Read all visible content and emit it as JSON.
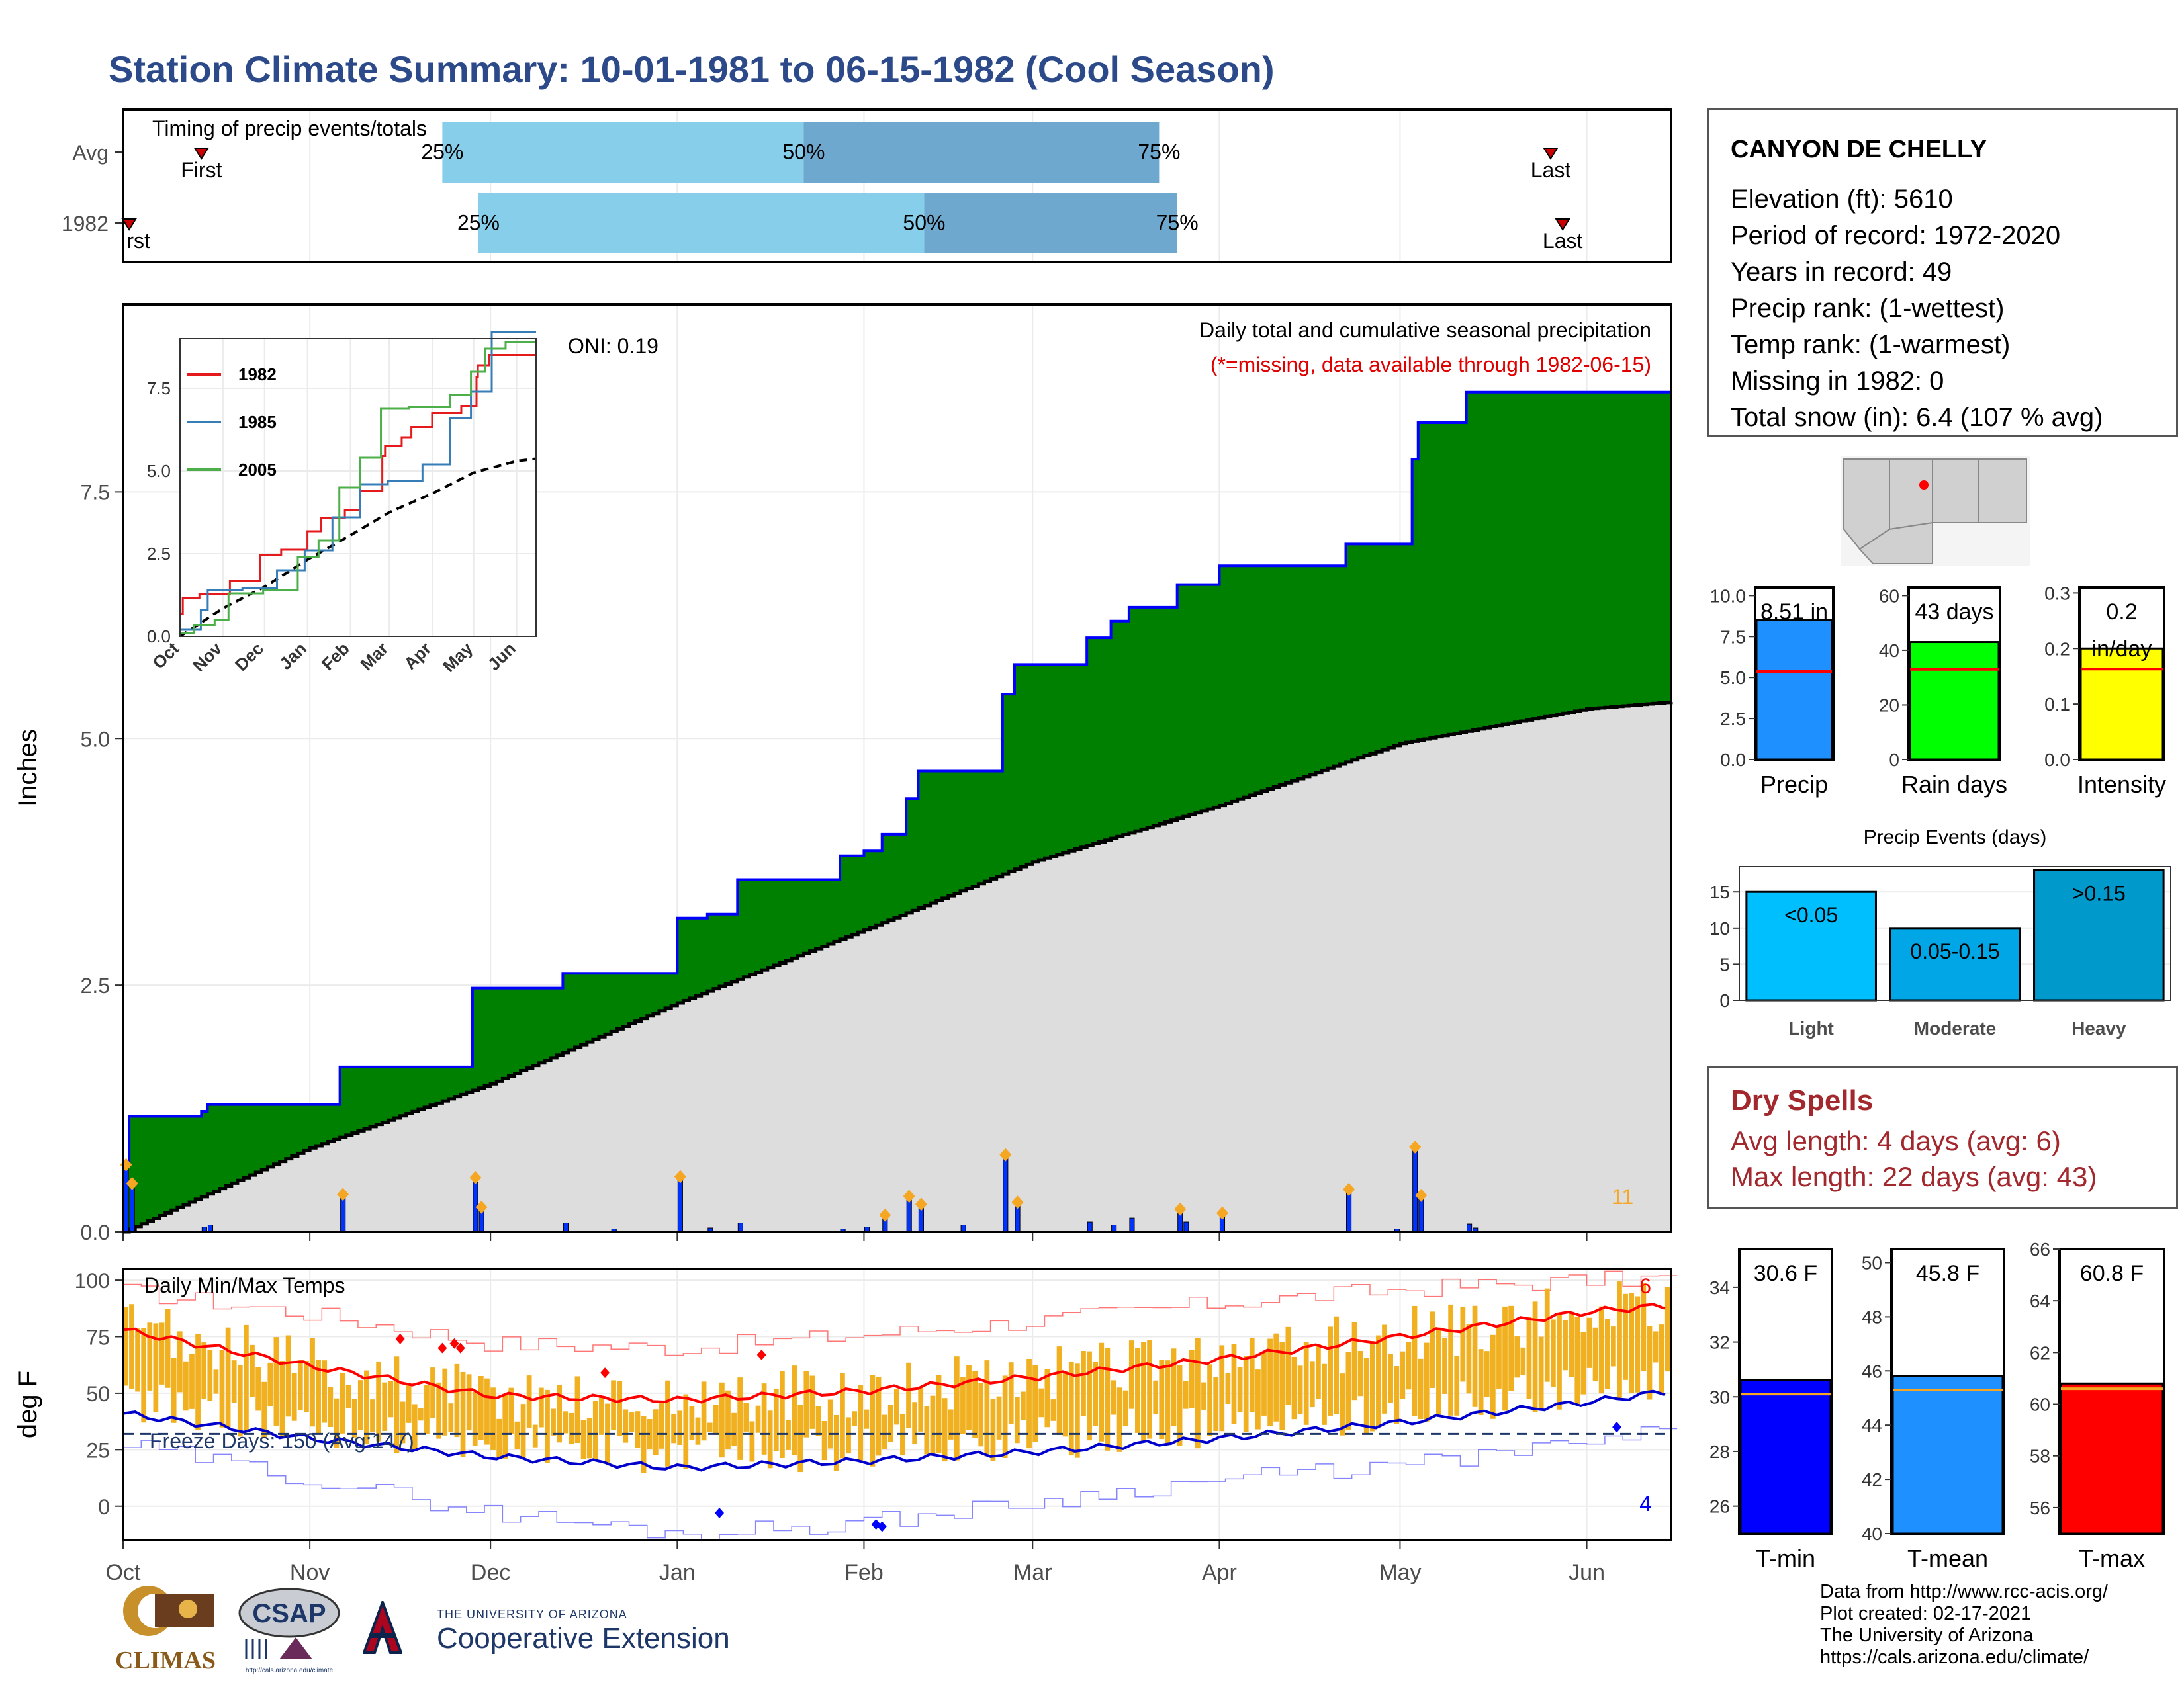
{
  "title": "Station Climate Summary: 10-01-1981 to 06-15-1982 (Cool Season)",
  "station": {
    "name": "CANYON DE CHELLY",
    "lines": [
      "Elevation (ft): 5610",
      "Period of record: 1972-2020",
      "Years in record: 49",
      "Precip rank:  (1-wettest)",
      "Temp rank:  (1-warmest)",
      "Missing in 1982: 0",
      "Total snow (in): 6.4 (107 % avg)"
    ]
  },
  "dry_spells": {
    "title": "Dry Spells",
    "avg": "Avg length: 4 days (avg: 6)",
    "max": "Max length: 22 days (avg: 43)"
  },
  "credits": [
    "Data from http://www.rcc-acis.org/",
    "Plot created: 02-17-2021",
    "The University of Arizona",
    "https://cals.arizona.edu/climate/"
  ],
  "logos": {
    "climas": "CLIMAS",
    "csap": "CSAP",
    "csap_url": "http://cals.arizona.edu/climate",
    "ua_small": "THE UNIVERSITY OF ARIZONA",
    "ua_big": "Cooperative Extension"
  },
  "colors": {
    "title": "#2c4a8a",
    "cumulative_fill": "#008000",
    "cumulative_line": "#0000ff",
    "avg_fill": "#dddddd",
    "daily_bar": "#0033ff",
    "timing_light": "#87ceeb",
    "timing_dark": "#6fa8cf",
    "precip_bar": "#1e90ff",
    "raindays_bar": "#00ff00",
    "intensity_bar": "#ffff00",
    "events_light": "#00bfff",
    "events_moderate": "#00a6e6",
    "events_heavy": "#0099cc",
    "temp_bar": "#f0b020",
    "tmax_line": "#ff0000",
    "tmin_line": "#0000cc",
    "dry_text": "#a3282e"
  },
  "chart_data": [
    {
      "id": "timing",
      "type": "bar",
      "title": "Timing of precip events/totals",
      "rows": [
        "Avg",
        "1982"
      ],
      "x_range_days": [
        0,
        257
      ],
      "avg": {
        "first": 13,
        "p25": 53,
        "p50": 113,
        "p75": 172,
        "last": 237
      },
      "y1982": {
        "first": 1,
        "p25": 59,
        "p50": 133,
        "p75": 175,
        "last": 239
      },
      "labels": {
        "first": "First",
        "last": "Last",
        "p25": "25%",
        "p50": "50%",
        "p75": "75%",
        "first_clipped": "rst"
      }
    },
    {
      "id": "precip",
      "type": "area",
      "title": "Daily total and cumulative seasonal precipitation",
      "subtitle": "(*=missing, data available through 1982-06-15)",
      "oni": "ONI: 0.19",
      "ylabel": "Inches",
      "ylim": [
        0,
        9.4
      ],
      "yticks": [
        0.0,
        2.5,
        5.0,
        7.5
      ],
      "ytick_labels": [
        "0.0",
        "2.5",
        "5.0",
        "7.5"
      ],
      "x_months": [
        "Oct",
        "Nov",
        "Dec",
        "Jan",
        "Feb",
        "Mar",
        "Apr",
        "May",
        "Jun"
      ],
      "x_month_days": [
        0,
        31,
        61,
        92,
        123,
        151,
        182,
        212,
        243
      ],
      "x_range_days": [
        0,
        257
      ],
      "cumulative_steps": [
        [
          0,
          0.68
        ],
        [
          1,
          1.17
        ],
        [
          13,
          1.22
        ],
        [
          14,
          1.29
        ],
        [
          36,
          1.67
        ],
        [
          58,
          2.47
        ],
        [
          73,
          2.62
        ],
        [
          92,
          3.18
        ],
        [
          97,
          3.22
        ],
        [
          102,
          3.57
        ],
        [
          119,
          3.81
        ],
        [
          123,
          3.86
        ],
        [
          126,
          4.03
        ],
        [
          130,
          4.39
        ],
        [
          132,
          4.67
        ],
        [
          146,
          5.45
        ],
        [
          148,
          5.75
        ],
        [
          160,
          6.02
        ],
        [
          164,
          6.19
        ],
        [
          167,
          6.33
        ],
        [
          175,
          6.56
        ],
        [
          182,
          6.75
        ],
        [
          203,
          6.97
        ],
        [
          214,
          7.83
        ],
        [
          215,
          8.2
        ],
        [
          223,
          8.51
        ],
        [
          257,
          8.51
        ]
      ],
      "average_cumulative": [
        [
          0,
          0.0
        ],
        [
          31,
          0.85
        ],
        [
          61,
          1.5
        ],
        [
          92,
          2.32
        ],
        [
          123,
          3.06
        ],
        [
          151,
          3.75
        ],
        [
          182,
          4.32
        ],
        [
          212,
          4.95
        ],
        [
          243,
          5.3
        ],
        [
          257,
          5.37
        ]
      ],
      "daily_precip": [
        [
          0,
          0.68
        ],
        [
          1,
          0.49
        ],
        [
          13,
          0.05
        ],
        [
          14,
          0.07
        ],
        [
          36,
          0.38
        ],
        [
          58,
          0.55
        ],
        [
          59,
          0.25
        ],
        [
          73,
          0.09
        ],
        [
          81,
          0.03
        ],
        [
          92,
          0.56
        ],
        [
          97,
          0.04
        ],
        [
          102,
          0.09
        ],
        [
          119,
          0.03
        ],
        [
          123,
          0.05
        ],
        [
          126,
          0.17
        ],
        [
          130,
          0.36
        ],
        [
          132,
          0.28
        ],
        [
          139,
          0.07
        ],
        [
          146,
          0.78
        ],
        [
          148,
          0.3
        ],
        [
          160,
          0.1
        ],
        [
          164,
          0.07
        ],
        [
          167,
          0.14
        ],
        [
          175,
          0.23
        ],
        [
          176,
          0.1
        ],
        [
          182,
          0.19
        ],
        [
          203,
          0.43
        ],
        [
          211,
          0.03
        ],
        [
          214,
          0.86
        ],
        [
          215,
          0.37
        ],
        [
          223,
          0.08
        ],
        [
          224,
          0.04
        ]
      ],
      "orange_count_label": "11",
      "inset": {
        "xlim_days": [
          0,
          257
        ],
        "ylim": [
          0,
          9.0
        ],
        "yticks": [
          0.0,
          2.5,
          5.0,
          7.5
        ],
        "ytick_labels": [
          "0.0",
          "2.5",
          "5.0",
          "7.5"
        ],
        "series": [
          {
            "name": "1982",
            "color": "#e41a1c",
            "values": [
              [
                0,
                0.68
              ],
              [
                2,
                1.17
              ],
              [
                14,
                1.29
              ],
              [
                36,
                1.67
              ],
              [
                58,
                2.47
              ],
              [
                73,
                2.62
              ],
              [
                92,
                3.18
              ],
              [
                102,
                3.57
              ],
              [
                119,
                3.81
              ],
              [
                130,
                4.39
              ],
              [
                146,
                5.45
              ],
              [
                148,
                5.75
              ],
              [
                160,
                6.02
              ],
              [
                167,
                6.33
              ],
              [
                182,
                6.75
              ],
              [
                203,
                6.97
              ],
              [
                214,
                7.83
              ],
              [
                215,
                8.2
              ],
              [
                223,
                8.51
              ],
              [
                257,
                8.51
              ]
            ]
          },
          {
            "name": "1985",
            "color": "#377eb8",
            "values": [
              [
                0,
                0.2
              ],
              [
                15,
                0.8
              ],
              [
                20,
                1.4
              ],
              [
                45,
                1.45
              ],
              [
                70,
                2.0
              ],
              [
                90,
                2.6
              ],
              [
                110,
                3.6
              ],
              [
                130,
                4.6
              ],
              [
                150,
                4.7
              ],
              [
                175,
                5.2
              ],
              [
                195,
                6.6
              ],
              [
                210,
                7.4
              ],
              [
                225,
                9.2
              ],
              [
                257,
                9.2
              ]
            ]
          },
          {
            "name": "2005",
            "color": "#4daf4a",
            "values": [
              [
                0,
                0.1
              ],
              [
                10,
                0.35
              ],
              [
                25,
                0.5
              ],
              [
                35,
                1.3
              ],
              [
                60,
                1.4
              ],
              [
                85,
                2.4
              ],
              [
                100,
                2.9
              ],
              [
                115,
                4.5
              ],
              [
                130,
                5.4
              ],
              [
                145,
                6.9
              ],
              [
                165,
                6.95
              ],
              [
                195,
                7.3
              ],
              [
                210,
                8.0
              ],
              [
                220,
                8.7
              ],
              [
                235,
                8.9
              ],
              [
                257,
                9.0
              ]
            ]
          }
        ],
        "average": [
          [
            0,
            0.0
          ],
          [
            31,
            0.85
          ],
          [
            61,
            1.5
          ],
          [
            92,
            2.32
          ],
          [
            123,
            3.06
          ],
          [
            151,
            3.75
          ],
          [
            182,
            4.32
          ],
          [
            212,
            4.95
          ],
          [
            243,
            5.3
          ],
          [
            257,
            5.37
          ]
        ],
        "x_months": [
          "Oct",
          "Nov",
          "Dec",
          "Jan",
          "Feb",
          "Mar",
          "Apr",
          "May",
          "Jun"
        ]
      }
    },
    {
      "id": "temps",
      "type": "line",
      "title": "Daily Min/Max Temps",
      "ylabel": "deg F",
      "ylim": [
        -15,
        105
      ],
      "yticks": [
        0,
        25,
        50,
        75,
        100
      ],
      "ytick_labels": [
        "0",
        "25",
        "50",
        "75",
        "100"
      ],
      "x_months": [
        "Oct",
        "Nov",
        "Dec",
        "Jan",
        "Feb",
        "Mar",
        "Apr",
        "May",
        "Jun"
      ],
      "x_month_days": [
        0,
        31,
        61,
        92,
        123,
        151,
        182,
        212,
        243
      ],
      "freeze_line": 32,
      "freeze_label": "Freeze Days: 150 (Avg:147)",
      "record_high_count": "6",
      "record_low_count": "4",
      "avg_tmax": [
        [
          0,
          78
        ],
        [
          31,
          62
        ],
        [
          61,
          49
        ],
        [
          92,
          47
        ],
        [
          123,
          51
        ],
        [
          151,
          57
        ],
        [
          182,
          65
        ],
        [
          212,
          75
        ],
        [
          243,
          86
        ],
        [
          257,
          89
        ]
      ],
      "avg_tmin": [
        [
          0,
          41
        ],
        [
          31,
          30
        ],
        [
          61,
          22
        ],
        [
          92,
          17
        ],
        [
          123,
          20
        ],
        [
          151,
          24
        ],
        [
          182,
          30
        ],
        [
          212,
          37
        ],
        [
          243,
          46
        ],
        [
          257,
          51
        ]
      ],
      "record_high": [
        [
          0,
          95
        ],
        [
          31,
          85
        ],
        [
          61,
          72
        ],
        [
          92,
          70
        ],
        [
          123,
          76
        ],
        [
          151,
          82
        ],
        [
          182,
          90
        ],
        [
          212,
          96
        ],
        [
          243,
          100
        ],
        [
          257,
          101
        ]
      ],
      "record_low": [
        [
          0,
          27
        ],
        [
          31,
          12
        ],
        [
          61,
          -3
        ],
        [
          92,
          -12
        ],
        [
          123,
          -7
        ],
        [
          151,
          2
        ],
        [
          182,
          12
        ],
        [
          212,
          18
        ],
        [
          243,
          28
        ],
        [
          257,
          33
        ]
      ],
      "record_high_days": [
        [
          46,
          74
        ],
        [
          53,
          70
        ],
        [
          55,
          72
        ],
        [
          56,
          70
        ],
        [
          80,
          59
        ],
        [
          106,
          67
        ]
      ],
      "record_low_days": [
        [
          99,
          -3
        ],
        [
          125,
          -8
        ],
        [
          126,
          -9
        ],
        [
          248,
          35
        ]
      ]
    },
    {
      "id": "precip_total",
      "type": "bar",
      "categories": [
        "Precip"
      ],
      "values": [
        8.51
      ],
      "label": "8.51 in",
      "avg": 5.37,
      "ylim": [
        0,
        10.5
      ],
      "yticks": [
        0.0,
        2.5,
        5.0,
        7.5,
        10.0
      ],
      "ytick_labels": [
        "0.0",
        "2.5",
        "5.0",
        "7.5",
        "10.0"
      ]
    },
    {
      "id": "rain_days",
      "type": "bar",
      "categories": [
        "Rain days"
      ],
      "values": [
        43
      ],
      "label": "43 days",
      "avg": 33,
      "ylim": [
        0,
        63
      ],
      "yticks": [
        0,
        20,
        40,
        60
      ],
      "ytick_labels": [
        "0",
        "20",
        "40",
        "60"
      ]
    },
    {
      "id": "intensity",
      "type": "bar",
      "categories": [
        "Intensity"
      ],
      "values": [
        0.2
      ],
      "label_lines": [
        "0.2",
        "in/day"
      ],
      "avg": 0.163,
      "ylim": [
        0,
        0.31
      ],
      "yticks": [
        0.0,
        0.1,
        0.2,
        0.3
      ],
      "ytick_labels": [
        "0.0",
        "0.1",
        "0.2",
        "0.3"
      ]
    },
    {
      "id": "events",
      "type": "bar",
      "title": "Precip Events (days)",
      "categories": [
        "Light",
        "Moderate",
        "Heavy"
      ],
      "values": [
        15,
        10,
        18
      ],
      "bar_labels": [
        "<0.05",
        "0.05-0.15",
        ">0.15"
      ],
      "ylim": [
        0,
        18.5
      ],
      "yticks": [
        0,
        5,
        10,
        15
      ],
      "ytick_labels": [
        "0",
        "5",
        "10",
        "15"
      ]
    },
    {
      "id": "tmin",
      "type": "bar",
      "categories": [
        "T-min"
      ],
      "values": [
        30.6
      ],
      "label": "30.6 F",
      "avg": 30.1,
      "ylim": [
        25,
        35.4
      ],
      "yticks": [
        26,
        28,
        30,
        32,
        34
      ],
      "ytick_labels": [
        "26",
        "28",
        "30",
        "32",
        "34"
      ]
    },
    {
      "id": "tmean",
      "type": "bar",
      "categories": [
        "T-mean"
      ],
      "values": [
        45.8
      ],
      "label": "45.8 F",
      "avg": 45.3,
      "ylim": [
        40,
        50.5
      ],
      "yticks": [
        40,
        42,
        44,
        46,
        48,
        50
      ],
      "ytick_labels": [
        "40",
        "42",
        "44",
        "46",
        "48",
        "50"
      ]
    },
    {
      "id": "tmax",
      "type": "bar",
      "categories": [
        "T-max"
      ],
      "values": [
        60.8
      ],
      "label": "60.8 F",
      "avg": 60.6,
      "ylim": [
        55,
        66
      ],
      "yticks": [
        56,
        58,
        60,
        62,
        64,
        66
      ],
      "ytick_labels": [
        "56",
        "58",
        "60",
        "62",
        "64",
        "66"
      ]
    }
  ]
}
